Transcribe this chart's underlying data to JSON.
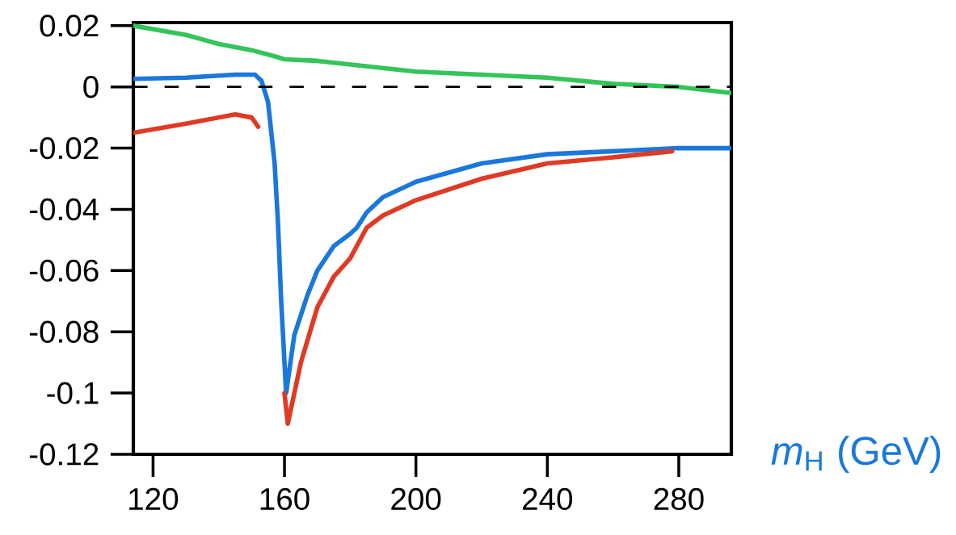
{
  "chart_data": {
    "type": "line",
    "xlabel": "*m*$_{H}$ (GeV)",
    "xlim": [
      114,
      296
    ],
    "ylim": [
      -0.12,
      0.021
    ],
    "xticks": [
      120,
      160,
      200,
      240,
      280
    ],
    "yticks": [
      0.02,
      0,
      -0.02,
      -0.04,
      -0.06,
      -0.08,
      -0.1,
      -0.12
    ],
    "grid": false,
    "marker": "none",
    "line_style": "solid",
    "ref_lines": [
      {
        "axis": "y",
        "value": 0,
        "color": "#000000",
        "line_style": "dashed"
      }
    ],
    "series": [
      {
        "color": "#33c45a",
        "x": [
          114,
          130,
          140,
          150,
          157,
          160,
          170,
          200,
          220,
          240,
          260,
          280,
          296
        ],
        "values": [
          0.02,
          0.017,
          0.014,
          0.012,
          0.01,
          0.009,
          0.0085,
          0.005,
          0.004,
          0.003,
          0.001,
          0,
          -0.002
        ]
      },
      {
        "color": "#1a78dc",
        "x": [
          114,
          130,
          145,
          151,
          153,
          155,
          157,
          158,
          159,
          160.5,
          163,
          167,
          170,
          175,
          180,
          182,
          185,
          190,
          200,
          220,
          240,
          260,
          280,
          296
        ],
        "values": [
          0.0026,
          0.003,
          0.004,
          0.004,
          0.002,
          -0.005,
          -0.025,
          -0.044,
          -0.07,
          -0.1,
          -0.081,
          -0.068,
          -0.06,
          -0.052,
          -0.048,
          -0.046,
          -0.041,
          -0.036,
          -0.031,
          -0.025,
          -0.022,
          -0.021,
          -0.02,
          -0.02
        ]
      },
      {
        "color": "#e03a24",
        "x": [
          114,
          130,
          145,
          150,
          152,
          153,
          160,
          161,
          165,
          170,
          175,
          180,
          182,
          185,
          190,
          200,
          220,
          240,
          260,
          278
        ],
        "values": [
          -0.015,
          -0.012,
          -0.009,
          -0.01,
          -0.013,
          null,
          -0.1,
          -0.11,
          -0.09,
          -0.072,
          -0.062,
          -0.056,
          -0.052,
          -0.046,
          -0.042,
          -0.037,
          -0.03,
          -0.025,
          -0.023,
          -0.021
        ]
      }
    ]
  }
}
